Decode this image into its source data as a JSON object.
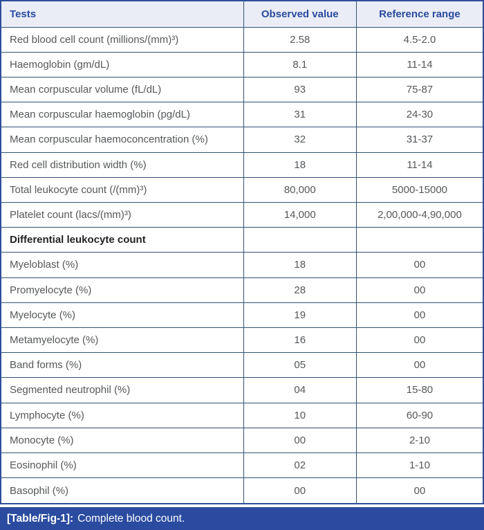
{
  "table": {
    "columns": [
      "Tests",
      "Observed value",
      "Reference range"
    ],
    "rows": [
      {
        "test": "Red blood cell count (millions/(mm)³)",
        "observed": "2.58",
        "reference": "4.5-2.0",
        "section": false
      },
      {
        "test": "Haemoglobin (gm/dL)",
        "observed": "8.1",
        "reference": "11-14",
        "section": false
      },
      {
        "test": "Mean corpuscular volume (fL/dL)",
        "observed": "93",
        "reference": "75-87",
        "section": false
      },
      {
        "test": "Mean corpuscular haemoglobin (pg/dL)",
        "observed": "31",
        "reference": "24-30",
        "section": false
      },
      {
        "test": "Mean corpuscular haemoconcentration (%)",
        "observed": "32",
        "reference": "31-37",
        "section": false
      },
      {
        "test": "Red cell distribution width (%)",
        "observed": "18",
        "reference": "11-14",
        "section": false
      },
      {
        "test": "Total leukocyte count (/(mm)³)",
        "observed": "80,000",
        "reference": "5000-15000",
        "section": false
      },
      {
        "test": "Platelet count (lacs/(mm)³)",
        "observed": "14,000",
        "reference": "2,00,000-4,90,000",
        "section": false
      },
      {
        "test": "Differential leukocyte count",
        "observed": "",
        "reference": "",
        "section": true
      },
      {
        "test": "Myeloblast (%)",
        "observed": "18",
        "reference": "00",
        "section": false
      },
      {
        "test": "Promyelocyte (%)",
        "observed": "28",
        "reference": "00",
        "section": false
      },
      {
        "test": "Myelocyte (%)",
        "observed": "19",
        "reference": "00",
        "section": false
      },
      {
        "test": "Metamyelocyte (%)",
        "observed": "16",
        "reference": "00",
        "section": false
      },
      {
        "test": "Band forms (%)",
        "observed": "05",
        "reference": "00",
        "section": false
      },
      {
        "test": "Segmented neutrophil (%)",
        "observed": "04",
        "reference": "15-80",
        "section": false
      },
      {
        "test": "Lymphocyte (%)",
        "observed": "10",
        "reference": "60-90",
        "section": false
      },
      {
        "test": "Monocyte (%)",
        "observed": "00",
        "reference": "2-10",
        "section": false
      },
      {
        "test": "Eosinophil (%)",
        "observed": "02",
        "reference": "1-10",
        "section": false
      },
      {
        "test": "Basophil (%)",
        "observed": "00",
        "reference": "00",
        "section": false
      }
    ]
  },
  "caption": {
    "label": "[Table/Fig-1]:",
    "text": "Complete blood count."
  },
  "colors": {
    "header_bg": "#eaedf6",
    "header_text": "#2b4a9e",
    "body_text": "#555759",
    "grid_line": "#2f5173",
    "outer_border": "#2c4d9c",
    "caption_bg": "#2a4b9f",
    "caption_text": "#ffffff"
  }
}
